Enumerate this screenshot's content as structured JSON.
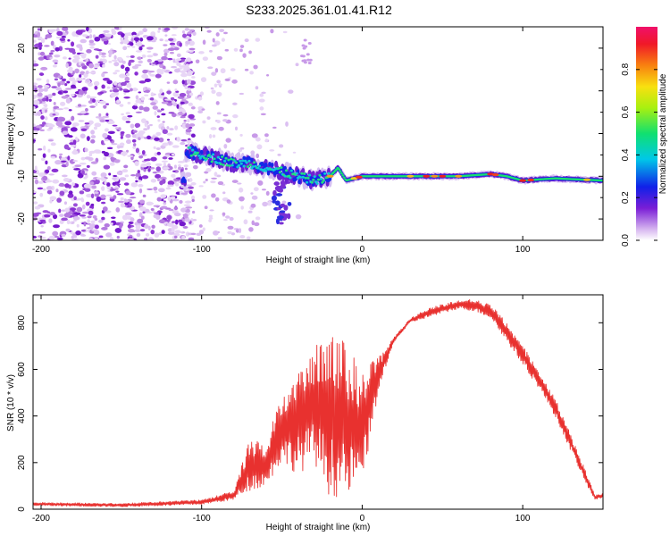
{
  "title": "S233.2025.361.01.41.R12",
  "chart_data": [
    {
      "type": "heatmap",
      "name": "spectrogram",
      "xlabel": "Height of straight line (km)",
      "ylabel": "Frequency (Hz)",
      "xlim": [
        -205,
        150
      ],
      "ylim": [
        -25,
        25
      ],
      "xticks": [
        -200,
        -100,
        0,
        100
      ],
      "yticks": [
        -20,
        -10,
        0,
        10,
        20
      ],
      "colorbar": {
        "label": "Normalized spectral amplitude",
        "range": [
          0,
          1
        ],
        "ticks": [
          0.0,
          0.2,
          0.4,
          0.6,
          0.8
        ]
      },
      "ridge": {
        "description_points_x": [
          -110,
          -100,
          -90,
          -80,
          -70,
          -60,
          -50,
          -40,
          -30,
          -20,
          -15,
          -10,
          0,
          20,
          40,
          60,
          80,
          90,
          100,
          120,
          150
        ],
        "description_points_freq": [
          -4,
          -5,
          -6,
          -7,
          -7,
          -8,
          -9,
          -10,
          -11,
          -10,
          -8,
          -11,
          -10,
          -10,
          -10,
          -10,
          -9.5,
          -10,
          -11,
          -10.5,
          -11
        ]
      }
    },
    {
      "type": "line",
      "name": "snr",
      "xlabel": "Height of straight line (km)",
      "ylabel": "SNR (10 * v/v)",
      "xlim": [
        -205,
        150
      ],
      "ylim": [
        0,
        920
      ],
      "xticks": [
        -200,
        -100,
        0,
        100
      ],
      "yticks": [
        0,
        200,
        400,
        600,
        800
      ],
      "color": "#e8312f",
      "envelope_x": [
        -205,
        -150,
        -100,
        -80,
        -70,
        -60,
        -50,
        -40,
        -30,
        -20,
        -10,
        0,
        10,
        20,
        30,
        40,
        50,
        60,
        70,
        80,
        90,
        100,
        110,
        120,
        130,
        140,
        145,
        150
      ],
      "envelope_upper": [
        30,
        25,
        40,
        80,
        300,
        280,
        500,
        620,
        700,
        800,
        700,
        600,
        650,
        740,
        820,
        860,
        880,
        900,
        900,
        880,
        800,
        700,
        600,
        480,
        320,
        150,
        60,
        70
      ],
      "envelope_lower": [
        15,
        10,
        20,
        40,
        80,
        100,
        200,
        150,
        200,
        50,
        50,
        100,
        500,
        720,
        800,
        820,
        840,
        860,
        850,
        820,
        720,
        620,
        520,
        400,
        250,
        100,
        40,
        50
      ]
    }
  ]
}
